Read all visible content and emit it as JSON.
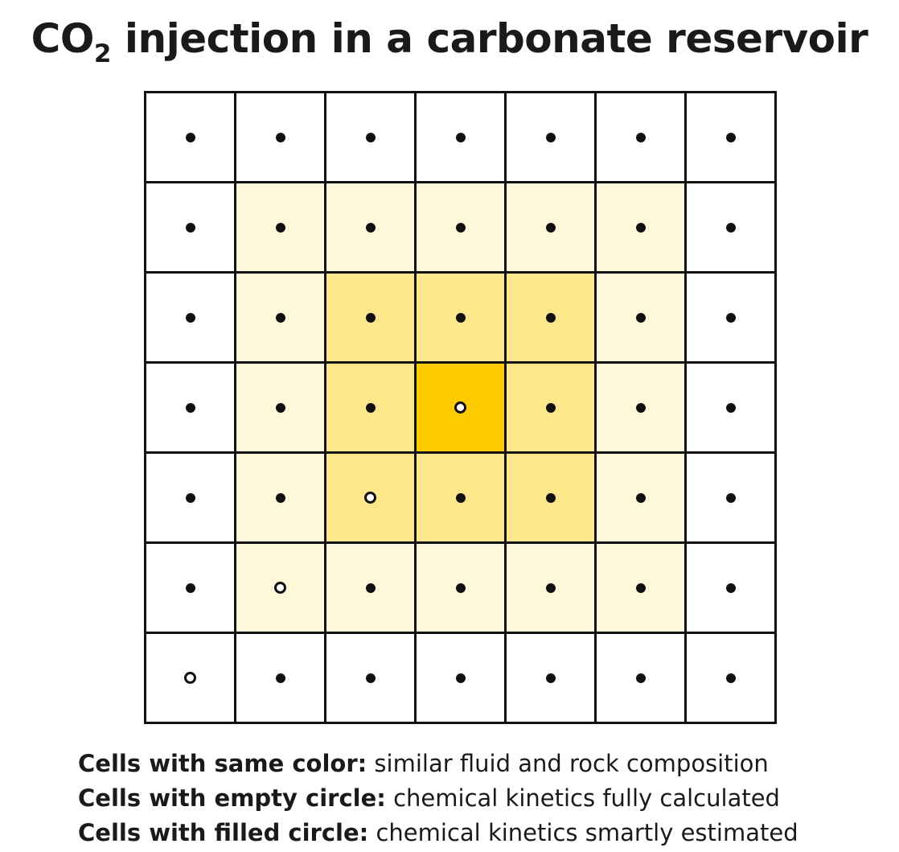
{
  "title": {
    "prefix": "CO",
    "subscript": "2",
    "rest": " injection in a carbonate reservoir"
  },
  "colors": {
    "level0": "#ffffff",
    "level1": "#fff7d9",
    "level2": "#fee68a",
    "level3": "#fdca00",
    "grid_line": "#111111",
    "marker": "#111111"
  },
  "grid": {
    "rows": 7,
    "cols": 7,
    "color_levels": [
      [
        0,
        0,
        0,
        0,
        0,
        0,
        0
      ],
      [
        0,
        1,
        1,
        1,
        1,
        1,
        0
      ],
      [
        0,
        1,
        2,
        2,
        2,
        1,
        0
      ],
      [
        0,
        1,
        2,
        3,
        2,
        1,
        0
      ],
      [
        0,
        1,
        2,
        2,
        2,
        1,
        0
      ],
      [
        0,
        1,
        1,
        1,
        1,
        1,
        0
      ],
      [
        0,
        0,
        0,
        0,
        0,
        0,
        0
      ]
    ],
    "markers": [
      [
        "filled",
        "filled",
        "filled",
        "filled",
        "filled",
        "filled",
        "filled"
      ],
      [
        "filled",
        "filled",
        "filled",
        "filled",
        "filled",
        "filled",
        "filled"
      ],
      [
        "filled",
        "filled",
        "filled",
        "filled",
        "filled",
        "filled",
        "filled"
      ],
      [
        "filled",
        "filled",
        "filled",
        "empty",
        "filled",
        "filled",
        "filled"
      ],
      [
        "filled",
        "filled",
        "empty",
        "filled",
        "filled",
        "filled",
        "filled"
      ],
      [
        "filled",
        "empty",
        "filled",
        "filled",
        "filled",
        "filled",
        "filled"
      ],
      [
        "empty",
        "filled",
        "filled",
        "filled",
        "filled",
        "filled",
        "filled"
      ]
    ]
  },
  "legend": [
    {
      "bold": "Cells with same color:",
      "text": " similar fluid and rock composition"
    },
    {
      "bold": "Cells with empty circle:",
      "text": " chemical kinetics fully calculated"
    },
    {
      "bold": "Cells with filled circle:",
      "text": " chemical kinetics smartly estimated"
    }
  ]
}
